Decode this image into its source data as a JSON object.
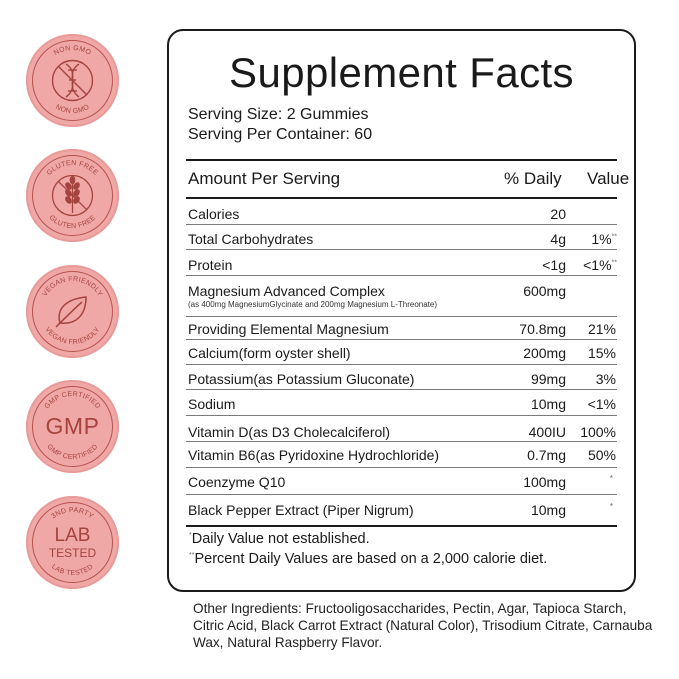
{
  "badges": [
    {
      "top_text": "NON GMO",
      "bottom_text": "NON GMO",
      "icon": "dna-crossed-icon"
    },
    {
      "top_text": "GLUTEN FREE",
      "bottom_text": "GLUTEN FREE",
      "icon": "wheat-crossed-icon"
    },
    {
      "top_text": "VEGAN FRIENDLY",
      "bottom_text": "VEGAN FRIENDLY",
      "icon": "leaf-icon"
    },
    {
      "top_text": "GMP CERTIFIED",
      "bottom_text": "GMP CERTIFIED",
      "center": "GMP"
    },
    {
      "top_text": "3ND PARTY",
      "bottom_text": "LAB TESTED",
      "center": "LAB",
      "center2": "TESTED"
    }
  ],
  "panel": {
    "title": "Supplement Facts",
    "serving_size": "Serving Size: 2 Gummies",
    "servings_per_container": "Serving Per Container: 60",
    "header": {
      "amount": "Amount Per Serving",
      "daily": "% Daily",
      "value": "Value"
    },
    "rows": [
      {
        "name": "Calories",
        "amount": "20",
        "dv": ""
      },
      {
        "name": "Total Carbohydrates",
        "amount": "4g",
        "dv": "1%",
        "mark": "**"
      },
      {
        "name": "Protein",
        "amount": "<1g",
        "dv": "<1%",
        "mark": "**"
      },
      {
        "name": "Magnesium Advanced Complex",
        "sub": "(as 400mg MagnesiumGlycinate and 200mg Magnesium L-Threonate)",
        "amount": "600mg",
        "dv": ""
      },
      {
        "name": "Providing Elemental Magnesium",
        "amount": "70.8mg",
        "dv": "21%"
      },
      {
        "name": "Calcium(form oyster shell)",
        "amount": "200mg",
        "dv": "15%"
      },
      {
        "name": "Potassium(as Potassium Gluconate)",
        "amount": "99mg",
        "dv": "3%"
      },
      {
        "name": "Sodium",
        "amount": "10mg",
        "dv": "<1%"
      },
      {
        "name": "Vitamin D(as D3 Cholecalciferol)",
        "amount": "400IU",
        "dv": "100%"
      },
      {
        "name": "Vitamin B6(as Pyridoxine Hydrochloride)",
        "amount": "0.7mg",
        "dv": "50%"
      },
      {
        "name": "Coenzyme Q10",
        "amount": "100mg",
        "dv": "*"
      },
      {
        "name": "Black Pepper Extract (Piper Nigrum)",
        "amount": "10mg",
        "dv": "*"
      }
    ],
    "footnote1_mark": "*",
    "footnote1": "Daily Value not established.",
    "footnote2_mark": "**",
    "footnote2": "Percent Daily Values are based on a 2,000 calorie diet."
  },
  "other_ingredients": {
    "label": "Other Ingredients:",
    "text": "Fructooligosaccharides, Pectin, Agar, Tapioca Starch, Citric Acid, Black Carrot Extract (Natural Color), Trisodium Citrate, Carnauba Wax, Natural Raspberry Flavor."
  },
  "colors": {
    "badge_fill": "#f0a8a6",
    "badge_ink": "#a5443f",
    "panel_border": "#1b1b1b"
  }
}
